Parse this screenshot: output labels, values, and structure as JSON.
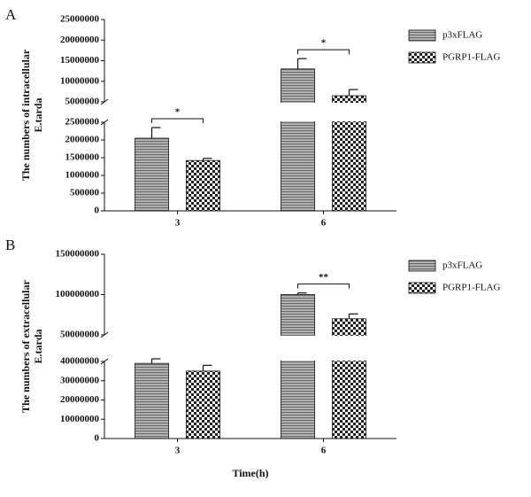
{
  "chart_data": [
    {
      "type": "bar",
      "panel": "A",
      "ylabel": [
        "The numbers of intracellular",
        "E.tarda"
      ],
      "categories": [
        "3",
        "6"
      ],
      "series": [
        {
          "name": "p3xFLAG",
          "color": "#8a8a8a",
          "pattern": "hlines",
          "values": [
            2050000,
            13000000
          ],
          "errors": [
            300000,
            2500000
          ]
        },
        {
          "name": "PGRP1-FLAG",
          "color": "#222222",
          "pattern": "checker",
          "values": [
            1420000,
            6500000
          ],
          "errors": [
            60000,
            1500000
          ]
        }
      ],
      "significance": [
        "*",
        "*"
      ],
      "ylim_lower": [
        0,
        2500000
      ],
      "yticks_lower": [
        0,
        500000,
        1000000,
        1500000,
        2000000,
        2500000
      ],
      "ylim_upper": [
        5000000,
        25000000
      ],
      "yticks_upper": [
        5000000,
        10000000,
        15000000,
        20000000,
        25000000
      ]
    },
    {
      "type": "bar",
      "panel": "B",
      "ylabel": [
        "The numbers of extracellular",
        "E.tarda"
      ],
      "xlabel": "Time(h)",
      "categories": [
        "3",
        "6"
      ],
      "series": [
        {
          "name": "p3xFLAG",
          "color": "#8a8a8a",
          "pattern": "hlines",
          "values": [
            39000000,
            100000000
          ],
          "errors": [
            2000000,
            2000000
          ]
        },
        {
          "name": "PGRP1-FLAG",
          "color": "#222222",
          "pattern": "checker",
          "values": [
            35000000,
            70000000
          ],
          "errors": [
            3000000,
            6000000
          ]
        }
      ],
      "significance": [
        null,
        "**"
      ],
      "ylim_lower": [
        0,
        40000000
      ],
      "yticks_lower": [
        0,
        10000000,
        20000000,
        30000000,
        40000000
      ],
      "ylim_upper": [
        50000000,
        150000000
      ],
      "yticks_upper": [
        50000000,
        100000000,
        150000000
      ]
    }
  ]
}
